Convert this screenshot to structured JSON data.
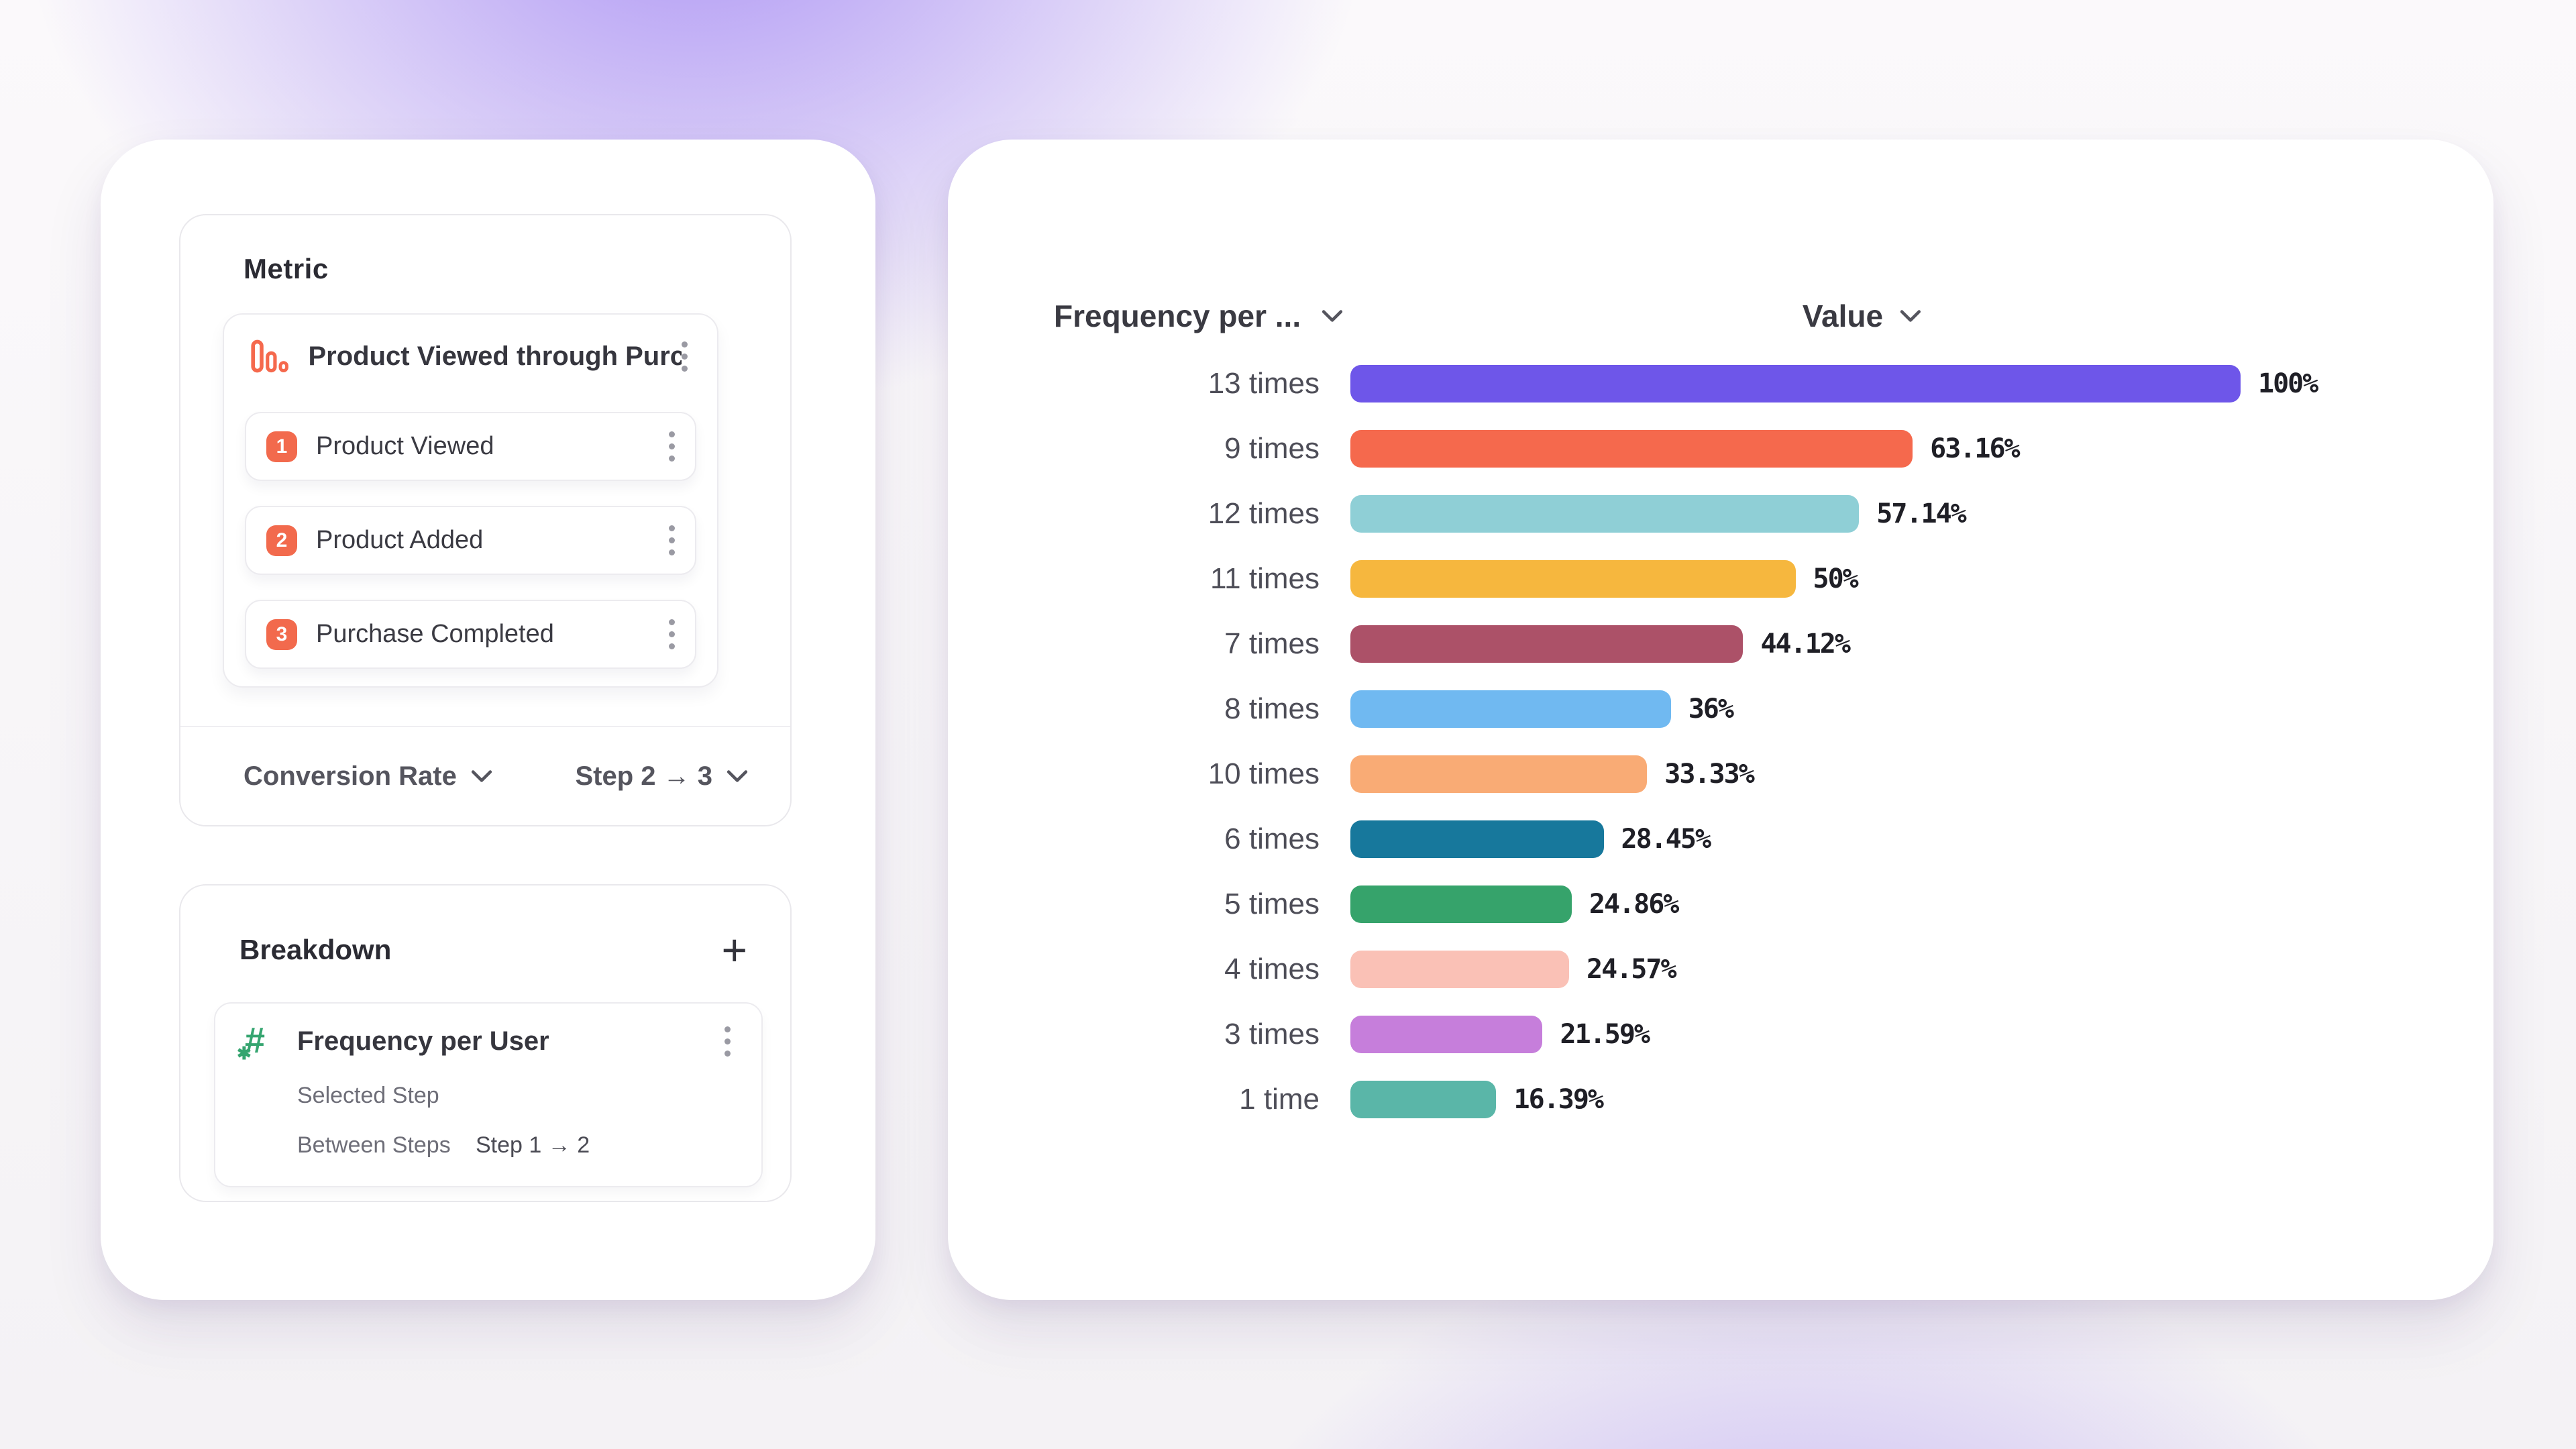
{
  "theme": {
    "coral": "#F26A4D",
    "green": "#35A570",
    "purple_glow": "#744CEE"
  },
  "left_panel": {
    "metric": {
      "title": "Metric",
      "funnel": {
        "title": "Product Viewed through Purch...",
        "icon": "funnel-bars-icon",
        "steps": [
          {
            "number": "1",
            "label": "Product Viewed"
          },
          {
            "number": "2",
            "label": "Product Added"
          },
          {
            "number": "3",
            "label": "Purchase Completed"
          }
        ]
      },
      "footer": {
        "measure_label": "Conversion Rate",
        "step_range_label": "Step 2 → 3"
      }
    },
    "breakdown": {
      "title": "Breakdown",
      "add_label": "+",
      "item": {
        "icon": "hash-star-icon",
        "title": "Frequency per User",
        "row1_label": "Selected Step",
        "row2_label": "Between Steps",
        "row2_value": "Step 1 → 2"
      }
    }
  },
  "chart_panel": {
    "header": {
      "left_column": "Frequency per ...",
      "right_column": "Value"
    }
  },
  "chart_data": {
    "type": "bar",
    "orientation": "horizontal",
    "title": "",
    "xlabel": "Value",
    "ylabel": "Frequency per User",
    "xlim": [
      0,
      100
    ],
    "grid": false,
    "legend": false,
    "categories": [
      "13 times",
      "9 times",
      "12 times",
      "11 times",
      "7 times",
      "8 times",
      "10 times",
      "6 times",
      "5 times",
      "4 times",
      "3 times",
      "1 time"
    ],
    "values": [
      100,
      63.16,
      57.14,
      50,
      44.12,
      36,
      33.33,
      28.45,
      24.86,
      24.57,
      21.59,
      16.39
    ],
    "value_labels": [
      "100%",
      "63.16%",
      "57.14%",
      "50%",
      "44.12%",
      "36%",
      "33.33%",
      "28.45%",
      "24.86%",
      "24.57%",
      "21.59%",
      "16.39%"
    ],
    "colors": [
      "#6E56E9",
      "#F5694D",
      "#8FCFD6",
      "#F6B73E",
      "#AC5168",
      "#70B9F1",
      "#F9AB75",
      "#17789C",
      "#36A36B",
      "#FAC1B6",
      "#C67EDB",
      "#5AB6A8"
    ]
  }
}
